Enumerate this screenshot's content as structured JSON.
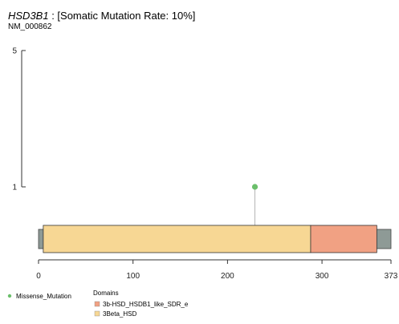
{
  "chart_data": {
    "type": "scatter",
    "title_gene": "HSD3B1",
    "title_rest": " : [Somatic Mutation Rate: 10%]",
    "transcript": "NM_000862",
    "xlim": [
      0,
      373
    ],
    "xticks": [
      0,
      100,
      200,
      300,
      373
    ],
    "ylim": [
      0,
      5
    ],
    "yticks": [
      1,
      5
    ],
    "protein_length": 373,
    "backbone_color": "#8e9a96",
    "mutations": [
      {
        "position": 229,
        "count": 1,
        "type": "Missense_Mutation",
        "color": "#6bbf6b"
      }
    ],
    "domains": [
      {
        "name": "3Beta_HSD",
        "start": 5,
        "end": 288,
        "color": "#f7d794"
      },
      {
        "name": "3b-HSD_HSDB1_like_SDR_e",
        "start": 288,
        "end": 358,
        "color": "#f1a183"
      }
    ],
    "legend": {
      "mutation_label": "Missense_Mutation",
      "mutation_color": "#6bbf6b",
      "domains_title": "Domains",
      "domain_entries": [
        {
          "name": "3b-HSD_HSDB1_like_SDR_e",
          "color": "#f1a183"
        },
        {
          "name": "3Beta_HSD",
          "color": "#f7d794"
        }
      ]
    }
  }
}
